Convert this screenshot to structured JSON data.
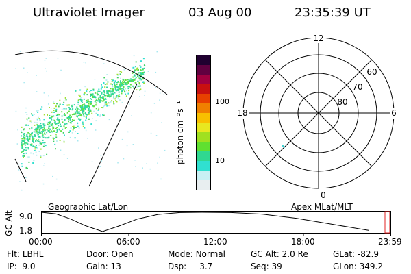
{
  "header": {
    "instrument": "Ultraviolet Imager",
    "date": "03 Aug 00",
    "time": "23:35:39 UT"
  },
  "colorbar": {
    "unit_label": "photon cm⁻²s⁻¹",
    "ticks": [
      "100",
      "10"
    ],
    "colors": [
      "#e8eef0",
      "#c8f0f4",
      "#30e0d0",
      "#30d890",
      "#60e030",
      "#a0e020",
      "#e8e820",
      "#f8c000",
      "#f08000",
      "#e84000",
      "#c81010",
      "#a00040",
      "#600040",
      "#200030"
    ]
  },
  "polar_plot": {
    "mlt_labels": [
      "12",
      "18",
      "6",
      "0"
    ],
    "mlat_labels": [
      "60",
      "70",
      "80"
    ]
  },
  "timeline": {
    "left_label": "Geographic Lat/Lon",
    "right_label": "Apex MLat/MLT",
    "y_axis_label": "GC Alt",
    "y_ticks": [
      "9.0",
      "1.8"
    ],
    "x_ticks": [
      "00:00",
      "06:00",
      "12:00",
      "18:00",
      "23:59"
    ],
    "series_alt_re": [
      9.0,
      8.4,
      6.5,
      4.0,
      1.8,
      4.0,
      6.5,
      8.2,
      8.9,
      9.0,
      8.9,
      8.3,
      6.8,
      4.5,
      2.2
    ],
    "series_hours": [
      0,
      1,
      2,
      3,
      4.2,
      5.4,
      6.6,
      8,
      9.5,
      11,
      13,
      15.2,
      17.5,
      20,
      22.5
    ]
  },
  "status": {
    "filter": {
      "label": "Flt:",
      "value": "LBHL"
    },
    "ip": {
      "label": "IP:",
      "value": "9.0"
    },
    "door": {
      "label": "Door:",
      "value": "Open"
    },
    "gain": {
      "label": "Gain:",
      "value": "13"
    },
    "mode": {
      "label": "Mode:",
      "value": "Normal"
    },
    "dsp": {
      "label": "Dsp:",
      "value": "3.7"
    },
    "gc_alt": {
      "label": "GC Alt:",
      "value": "2.0 Re"
    },
    "seq": {
      "label": "Seq:",
      "value": "39"
    },
    "glat": {
      "label": "GLat:",
      "value": "-82.9"
    },
    "glon": {
      "label": "GLon:",
      "value": "349.2"
    }
  }
}
